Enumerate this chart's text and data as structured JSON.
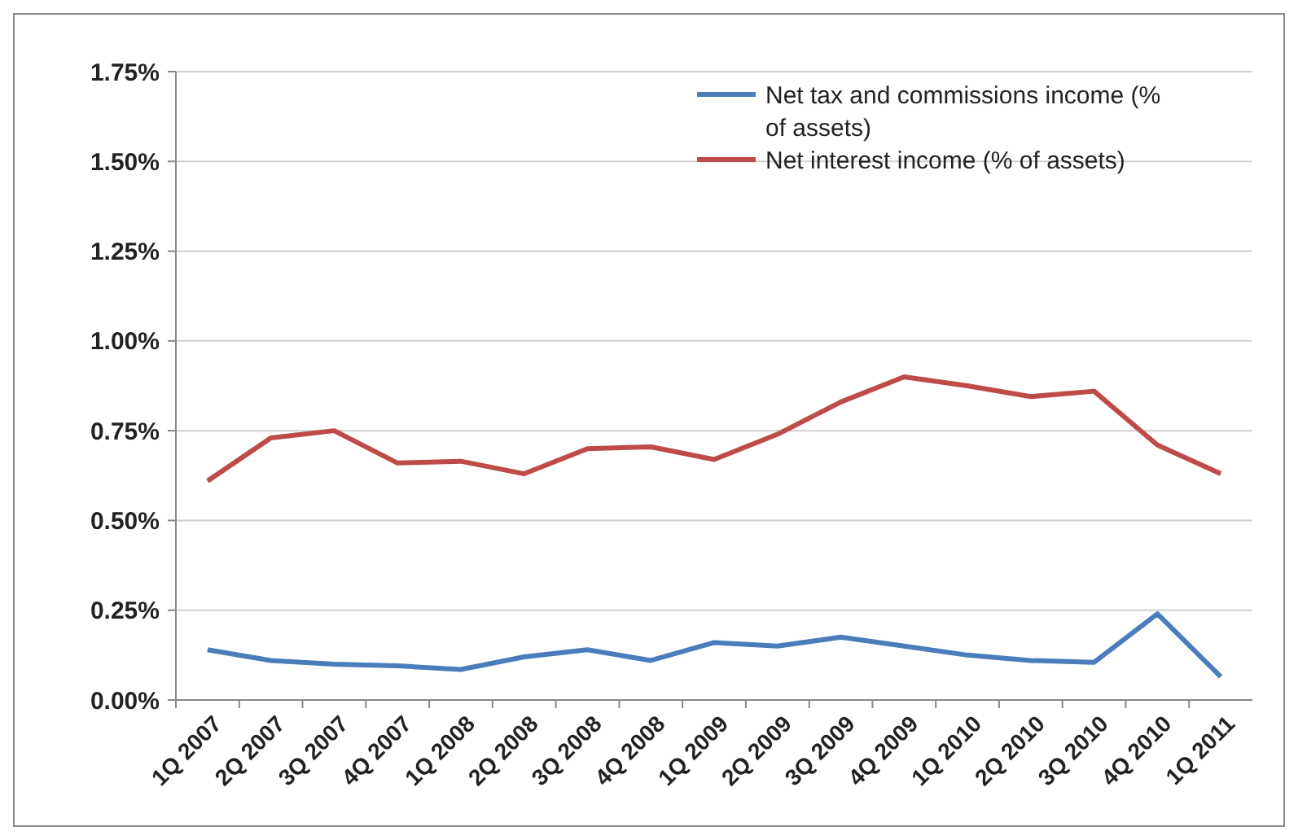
{
  "chart_data": {
    "type": "line",
    "categories": [
      "1Q 2007",
      "2Q 2007",
      "3Q 2007",
      "4Q 2007",
      "1Q 2008",
      "2Q 2008",
      "3Q 2008",
      "4Q 2008",
      "1Q 2009",
      "2Q 2009",
      "3Q 2009",
      "4Q 2009",
      "1Q 2010",
      "2Q 2010",
      "3Q 2010",
      "4Q 2010",
      "1Q 2011"
    ],
    "series": [
      {
        "name": "Net tax and commissions income (% of assets)",
        "color": "#4a7ebb",
        "values": [
          0.14,
          0.11,
          0.1,
          0.095,
          0.085,
          0.12,
          0.14,
          0.11,
          0.16,
          0.15,
          0.175,
          0.15,
          0.125,
          0.11,
          0.105,
          0.24,
          0.065
        ]
      },
      {
        "name": "Net interest income (% of assets)",
        "color": "#be4b48",
        "values": [
          0.61,
          0.73,
          0.75,
          0.66,
          0.665,
          0.63,
          0.7,
          0.705,
          0.67,
          0.74,
          0.83,
          0.9,
          0.875,
          0.845,
          0.86,
          0.71,
          0.63
        ]
      }
    ],
    "ylim": [
      0,
      1.75
    ],
    "yticks": [
      {
        "value": 0,
        "label": "0.00%"
      },
      {
        "value": 0.25,
        "label": "0.25%"
      },
      {
        "value": 0.5,
        "label": "0.50%"
      },
      {
        "value": 0.75,
        "label": "0.75%"
      },
      {
        "value": 1,
        "label": "1.00%"
      },
      {
        "value": 1.25,
        "label": "1.25%"
      },
      {
        "value": 1.5,
        "label": "1.50%"
      },
      {
        "value": 1.75,
        "label": "1.75%"
      }
    ],
    "grid": "y",
    "legend": "top right",
    "marker": "none",
    "line_style": "solid"
  }
}
